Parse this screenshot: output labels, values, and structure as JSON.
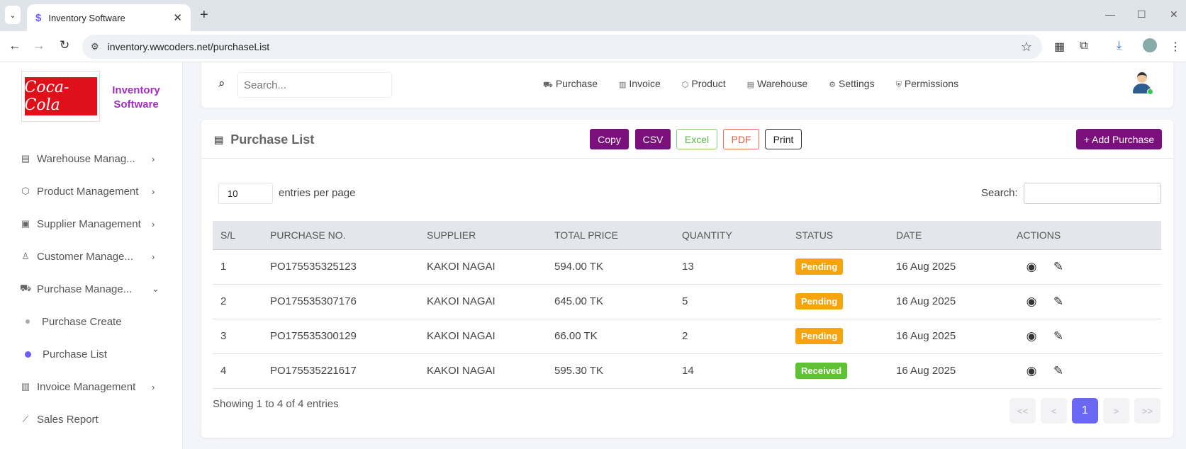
{
  "browser": {
    "tab_title": "Inventory Software",
    "url": "inventory.wwcoders.net/purchaseList"
  },
  "brand": {
    "logo_text": "Coca-Cola",
    "name": "Inventory Software"
  },
  "sidebar": {
    "items": [
      {
        "label": "Warehouse Manag...",
        "icon": "building-icon"
      },
      {
        "label": "Product Management",
        "icon": "cube-icon"
      },
      {
        "label": "Supplier Management",
        "icon": "id-card-icon"
      },
      {
        "label": "Customer Manage...",
        "icon": "user-icon"
      },
      {
        "label": "Purchase Manage...",
        "icon": "cart-icon"
      },
      {
        "label": "Invoice Management",
        "icon": "file-icon"
      },
      {
        "label": "Sales Report",
        "icon": "chart-line-icon"
      }
    ],
    "sub_items": [
      {
        "label": "Purchase Create",
        "active": false
      },
      {
        "label": "Purchase List",
        "active": true
      }
    ]
  },
  "topnav": {
    "search_placeholder": "Search...",
    "links": [
      "Purchase",
      "Invoice",
      "Product",
      "Warehouse",
      "Settings",
      "Permissions"
    ]
  },
  "card": {
    "title": "Purchase List",
    "buttons": {
      "copy": "Copy",
      "csv": "CSV",
      "excel": "Excel",
      "pdf": "PDF",
      "print": "Print",
      "add": "+ Add Purchase"
    },
    "entries_value": "10",
    "entries_label": "entries per page",
    "search_label": "Search:",
    "columns": [
      "S/L",
      "PURCHASE NO.",
      "SUPPLIER",
      "TOTAL PRICE",
      "QUANTITY",
      "STATUS",
      "DATE",
      "ACTIONS"
    ],
    "rows": [
      {
        "sl": "1",
        "no": "PO175535325123",
        "supplier": "KAKOI NAGAI",
        "total": "594.00 TK",
        "qty": "13",
        "status": "Pending",
        "date": "16 Aug 2025"
      },
      {
        "sl": "2",
        "no": "PO175535307176",
        "supplier": "KAKOI NAGAI",
        "total": "645.00 TK",
        "qty": "5",
        "status": "Pending",
        "date": "16 Aug 2025"
      },
      {
        "sl": "3",
        "no": "PO175535300129",
        "supplier": "KAKOI NAGAI",
        "total": "66.00 TK",
        "qty": "2",
        "status": "Pending",
        "date": "16 Aug 2025"
      },
      {
        "sl": "4",
        "no": "PO175535221617",
        "supplier": "KAKOI NAGAI",
        "total": "595.30 TK",
        "qty": "14",
        "status": "Received",
        "date": "16 Aug 2025"
      }
    ],
    "showing": "Showing 1 to 4 of 4 entries",
    "pager": {
      "first": "<<",
      "prev": "<",
      "current": "1",
      "next": ">",
      "last": ">>"
    }
  },
  "colors": {
    "brand_purple": "#7b0f7b",
    "pending": "#f5a50b",
    "received": "#5fc234",
    "pager_active": "#6b67f5"
  }
}
